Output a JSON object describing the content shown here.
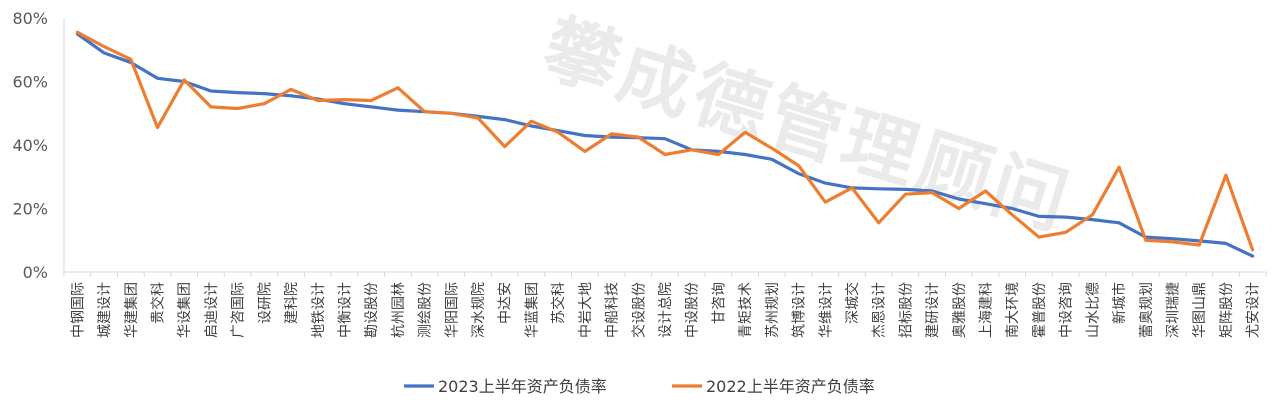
{
  "chart_data": {
    "type": "line",
    "title": "",
    "xlabel": "",
    "ylabel": "",
    "ylim": [
      0,
      80
    ],
    "yticks": [
      "0%",
      "20%",
      "40%",
      "60%",
      "80%"
    ],
    "yticks_values": [
      0,
      20,
      40,
      60,
      80
    ],
    "grid": false,
    "legend_position": "bottom-center",
    "watermark": "攀成德管理顾问",
    "categories": [
      "中钢国际",
      "城建设计",
      "华建集团",
      "贵交科",
      "华设集团",
      "启迪设计",
      "广咨国际",
      "设研院",
      "建科院",
      "地铁设计",
      "中衡设计",
      "勘设股份",
      "杭州园林",
      "测绘股份",
      "华阳国际",
      "深水规院",
      "中达安",
      "华蓝集团",
      "苏交科",
      "中岩大地",
      "中船科技",
      "交设股份",
      "设计总院",
      "中设股份",
      "甘咨询",
      "青矩技术",
      "苏州规划",
      "筑博设计",
      "华维设计",
      "深城交",
      "杰恩设计",
      "招标股份",
      "建研设计",
      "奥雅股份",
      "上海建科",
      "南大环境",
      "霍普股份",
      "中设咨询",
      "山水比德",
      "新城市",
      "蕾奥规划",
      "深圳瑞捷",
      "华图山鼎",
      "矩阵股份",
      "尤安设计"
    ],
    "series": [
      {
        "name": "2023上半年资产负债率",
        "color": "#4472c4",
        "values": [
          75,
          69,
          66,
          61,
          60,
          57,
          56.5,
          56.2,
          55.5,
          54.5,
          53,
          52,
          51,
          50.5,
          50,
          49,
          48,
          46,
          44.5,
          43,
          42.5,
          42.3,
          42,
          38.5,
          38,
          37,
          35.5,
          31,
          28,
          26.5,
          26.2,
          26,
          25.5,
          23,
          21.5,
          20,
          17.5,
          17.3,
          16.5,
          15.5,
          11,
          10.5,
          9.8,
          9,
          5
        ]
      },
      {
        "name": "2022上半年资产负债率",
        "color": "#ed7d31",
        "values": [
          75.5,
          71,
          67,
          45.5,
          60.5,
          52,
          51.5,
          53,
          57.5,
          54,
          54.3,
          54,
          58,
          50.5,
          50,
          48.5,
          39.5,
          47.5,
          44,
          38,
          43.5,
          42.5,
          37,
          38.5,
          37,
          44,
          39,
          33.5,
          22,
          26.5,
          15.5,
          24.5,
          25,
          20,
          25.5,
          18,
          11,
          12.5,
          18,
          33,
          10,
          9.5,
          8.5,
          30.5,
          7
        ]
      }
    ]
  }
}
